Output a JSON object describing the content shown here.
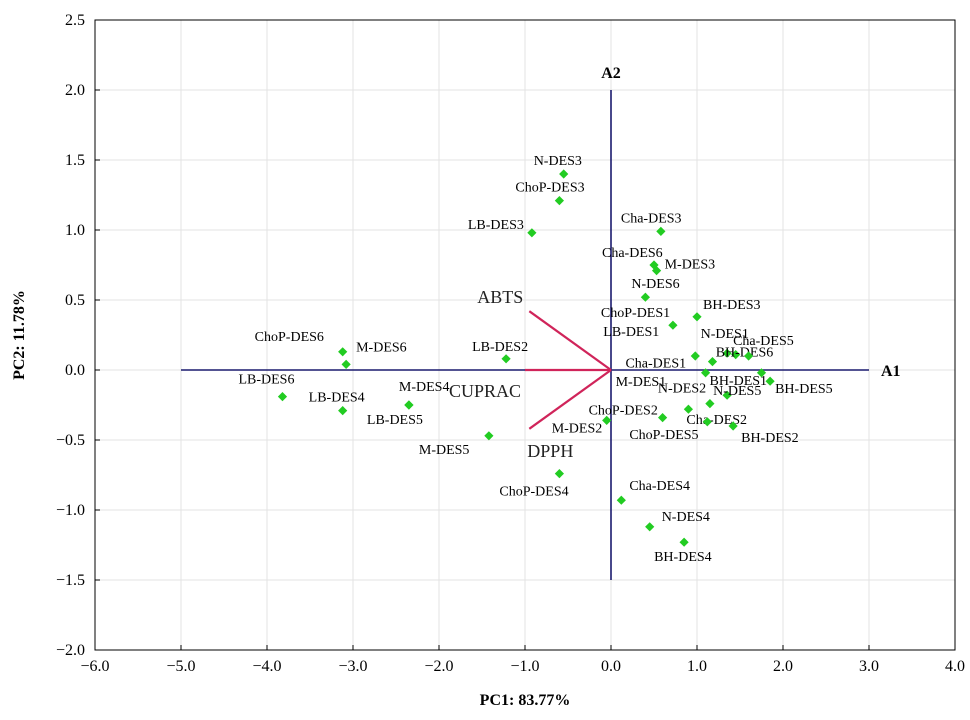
{
  "chart_data": {
    "type": "scatter",
    "xlabel": "PC1: 83.77%",
    "ylabel": "PC2: 11.78%",
    "xlim": [
      -6.0,
      4.0
    ],
    "ylim": [
      -2.0,
      2.5
    ],
    "xticks": [
      -6.0,
      -5.0,
      -4.0,
      -3.0,
      -2.0,
      -1.0,
      0.0,
      1.0,
      2.0,
      3.0,
      4.0
    ],
    "xtick_labels": [
      "−6.0",
      "−5.0",
      "−4.0",
      "−3.0",
      "−2.0",
      "−1.0",
      "0.0",
      "1.0",
      "2.0",
      "3.0",
      "4.0"
    ],
    "yticks": [
      -2.0,
      -1.5,
      -1.0,
      -0.5,
      0.0,
      0.5,
      1.0,
      1.5,
      2.0,
      2.5
    ],
    "ytick_labels": [
      "−2.0",
      "−1.5",
      "−1.0",
      "−0.5",
      "0.0",
      "0.5",
      "1.0",
      "1.5",
      "2.0",
      "2.5"
    ],
    "grid": true,
    "marker_color": "#22cc22",
    "reference_axes": [
      {
        "label": "A1",
        "from": [
          -5.0,
          0.0
        ],
        "to": [
          3.0,
          0.0
        ],
        "color": "#1a1a6e"
      },
      {
        "label": "A2",
        "from": [
          0.0,
          -1.5
        ],
        "to": [
          0.0,
          2.0
        ],
        "color": "#1a1a6e"
      }
    ],
    "loadings": {
      "color": "#d0245a",
      "origin": [
        0.0,
        0.0
      ],
      "vectors": [
        {
          "label": "ABTS",
          "x": -0.95,
          "y": 0.42
        },
        {
          "label": "CUPRAC",
          "x": -1.0,
          "y": 0.0
        },
        {
          "label": "DPPH",
          "x": -0.95,
          "y": -0.42
        }
      ]
    },
    "points": [
      {
        "label": "N-DES3",
        "x": -0.55,
        "y": 1.4
      },
      {
        "label": "ChoP-DES3",
        "x": -0.6,
        "y": 1.21
      },
      {
        "label": "LB-DES3",
        "x": -0.92,
        "y": 0.98
      },
      {
        "label": "Cha-DES3",
        "x": 0.58,
        "y": 0.99
      },
      {
        "label": "Cha-DES6",
        "x": 0.5,
        "y": 0.75
      },
      {
        "label": "M-DES3",
        "x": 0.53,
        "y": 0.71
      },
      {
        "label": "N-DES6",
        "x": 0.4,
        "y": 0.52
      },
      {
        "label": "BH-DES3",
        "x": 1.0,
        "y": 0.38
      },
      {
        "label": "ChoP-DES1",
        "x": 0.72,
        "y": 0.32
      },
      {
        "label": "Cha-DES5",
        "x": 1.35,
        "y": 0.12
      },
      {
        "label": "BH-DES6",
        "x": 1.45,
        "y": 0.11
      },
      {
        "label": "LB-DES1",
        "x": 0.98,
        "y": 0.1
      },
      {
        "label": "N-DES1",
        "x": 1.6,
        "y": 0.1
      },
      {
        "label": "Cha-DES1",
        "x": 1.18,
        "y": 0.06
      },
      {
        "label": "BH-DES1",
        "x": 1.75,
        "y": -0.02
      },
      {
        "label": "M-DES1",
        "x": 1.1,
        "y": -0.02
      },
      {
        "label": "BH-DES5",
        "x": 1.85,
        "y": -0.08
      },
      {
        "label": "N-DES5",
        "x": 1.35,
        "y": -0.18
      },
      {
        "label": "N-DES2",
        "x": 1.15,
        "y": -0.24
      },
      {
        "label": "Cha-DES2",
        "x": 0.9,
        "y": -0.28
      },
      {
        "label": "ChoP-DES2",
        "x": 0.6,
        "y": -0.34
      },
      {
        "label": "ChoP-DES5",
        "x": 1.12,
        "y": -0.37
      },
      {
        "label": "BH-DES2",
        "x": 1.42,
        "y": -0.4
      },
      {
        "label": "M-DES2",
        "x": -0.05,
        "y": -0.36
      },
      {
        "label": "M-DES5",
        "x": -1.42,
        "y": -0.47
      },
      {
        "label": "ChoP-DES4",
        "x": -0.6,
        "y": -0.74
      },
      {
        "label": "Cha-DES4",
        "x": 0.12,
        "y": -0.93
      },
      {
        "label": "N-DES4",
        "x": 0.45,
        "y": -1.12
      },
      {
        "label": "BH-DES4",
        "x": 0.85,
        "y": -1.23
      },
      {
        "label": "ChoP-DES6",
        "x": -3.12,
        "y": 0.13
      },
      {
        "label": "M-DES6",
        "x": -3.08,
        "y": 0.04
      },
      {
        "label": "LB-DES2",
        "x": -1.22,
        "y": 0.08
      },
      {
        "label": "LB-DES6",
        "x": -3.82,
        "y": -0.19
      },
      {
        "label": "LB-DES4",
        "x": -3.12,
        "y": -0.29
      },
      {
        "label": "M-DES4",
        "x": -2.35,
        "y": -0.25
      },
      {
        "label": "LB-DES5",
        "x": -2.35,
        "y": -0.25
      }
    ]
  }
}
